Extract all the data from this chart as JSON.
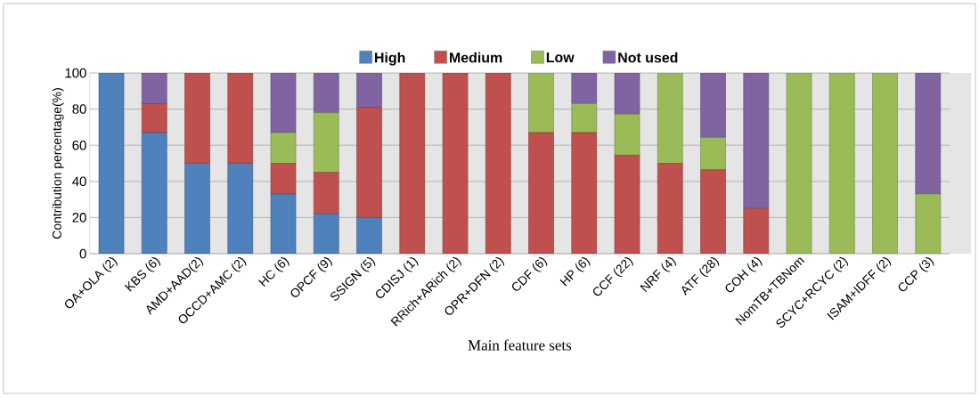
{
  "chart_data": {
    "type": "bar",
    "stacked": true,
    "xlabel": "Main feature sets",
    "ylabel": "Contribution percentage(%)",
    "categories": [
      "OA+OLA (2)",
      "KBS (6)",
      "AMD+AAD(2)",
      "OCCD+AMC (2)",
      "HC (6)",
      "OPCF (9)",
      "SSIGN (5)",
      "CDISJ (1)",
      "RRich+ARich (2)",
      "OPR+DFN (2)",
      "CDF (6)",
      "HP (6)",
      "CCF (22)",
      "NRF (4)",
      "ATF (28)",
      "COH (4)",
      "NomTB+TBNom",
      "SCYC+RCYC (2)",
      "ISAM+IDFF (2)",
      "CCP (3)"
    ],
    "series": [
      {
        "name": "High",
        "color": "#4f81bd",
        "values": [
          100,
          67,
          50,
          50,
          33,
          22,
          20,
          0,
          0,
          0,
          0,
          0,
          0,
          0,
          0,
          0,
          0,
          0,
          0,
          0
        ]
      },
      {
        "name": "Medium",
        "color": "#c0504d",
        "values": [
          0,
          16,
          50,
          50,
          17,
          23,
          61,
          100,
          100,
          100,
          67,
          67,
          54.5,
          50,
          46.4,
          25,
          0,
          0,
          0,
          0
        ]
      },
      {
        "name": "Low",
        "color": "#9bbb59",
        "values": [
          0,
          0,
          0,
          0,
          17,
          33,
          0,
          0,
          0,
          0,
          33,
          16,
          22.7,
          50,
          17.9,
          0,
          100,
          100,
          100,
          33
        ]
      },
      {
        "name": "Not used",
        "color": "#8064a2",
        "values": [
          0,
          17,
          0,
          0,
          33,
          22,
          19,
          0,
          0,
          0,
          0,
          17,
          22.8,
          0,
          35.7,
          75,
          0,
          0,
          0,
          67
        ]
      }
    ],
    "ylim": [
      0,
      100
    ],
    "yticks": [
      0,
      20,
      40,
      60,
      80,
      100
    ],
    "grid": "y",
    "legend": "top"
  }
}
